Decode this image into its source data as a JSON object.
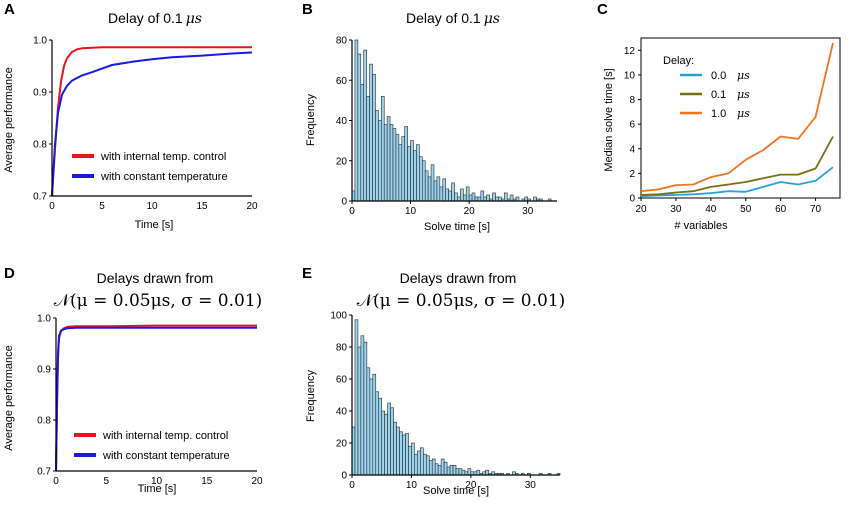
{
  "chart_data": [
    {
      "panel": "A",
      "type": "line",
      "title_prefix": "Delay of ",
      "title_value": "0.1",
      "title_unit": "μs",
      "xlabel": "Time [s]",
      "ylabel": "Average performance",
      "xlim": [
        0,
        20
      ],
      "ylim": [
        0.7,
        1.0
      ],
      "xticks": [
        0,
        5,
        10,
        15,
        20
      ],
      "yticks": [
        0.7,
        0.8,
        0.9,
        1.0
      ],
      "ytick_labels": [
        "0.7",
        "0.8",
        "0.9",
        "1.0"
      ],
      "series": [
        {
          "name": "with internal temp. control",
          "color": "#e8141c",
          "x": [
            0,
            0.3,
            0.6,
            0.9,
            1.2,
            1.5,
            2,
            2.5,
            3,
            4,
            5,
            7,
            10,
            15,
            20
          ],
          "y": [
            0.7,
            0.79,
            0.87,
            0.92,
            0.95,
            0.965,
            0.977,
            0.982,
            0.984,
            0.985,
            0.986,
            0.986,
            0.986,
            0.986,
            0.986
          ]
        },
        {
          "name": "with constant temperature",
          "color": "#1a1ae0",
          "x": [
            0,
            0.3,
            0.6,
            1,
            1.5,
            2,
            3,
            4,
            5,
            6,
            8,
            10,
            12,
            15,
            18,
            20
          ],
          "y": [
            0.7,
            0.8,
            0.86,
            0.895,
            0.912,
            0.922,
            0.932,
            0.938,
            0.945,
            0.952,
            0.958,
            0.963,
            0.967,
            0.97,
            0.974,
            0.976
          ]
        }
      ]
    },
    {
      "panel": "B",
      "type": "bar",
      "title_prefix": "Delay of ",
      "title_value": "0.1",
      "title_unit": "μs",
      "xlabel": "Solve time [s]",
      "ylabel": "Frequency",
      "xlim": [
        0,
        35
      ],
      "ylim": [
        0,
        80
      ],
      "xticks": [
        0,
        10,
        20,
        30
      ],
      "yticks": [
        0,
        20,
        40,
        60,
        80
      ],
      "bin_width": 0.5,
      "values": [
        5,
        80,
        73,
        58,
        75,
        52,
        68,
        63,
        45,
        40,
        52,
        38,
        42,
        38,
        36,
        33,
        28,
        32,
        37,
        27,
        30,
        25,
        28,
        22,
        20,
        15,
        12,
        18,
        10,
        12,
        7,
        11,
        6,
        5,
        9,
        4,
        2,
        6,
        3,
        7,
        3,
        4,
        2,
        2,
        5,
        2,
        3,
        1,
        4,
        2,
        2,
        1,
        4,
        1,
        3,
        1,
        2,
        0,
        1,
        2,
        1,
        0,
        2,
        1,
        1,
        0,
        0,
        1
      ]
    },
    {
      "panel": "C",
      "type": "line",
      "xlabel": "# variables",
      "ylabel": "Median solve time [s]",
      "legend_title": "Delay:",
      "xlim": [
        20,
        77
      ],
      "ylim": [
        0,
        13
      ],
      "xticks": [
        20,
        30,
        40,
        50,
        60,
        70
      ],
      "yticks": [
        0,
        2,
        4,
        6,
        8,
        10,
        12
      ],
      "x": [
        20,
        25,
        30,
        35,
        40,
        45,
        50,
        55,
        60,
        65,
        70,
        75
      ],
      "series": [
        {
          "name": "0.0",
          "unit": "μs",
          "color": "#2a9fdc",
          "values": [
            0.15,
            0.2,
            0.25,
            0.3,
            0.4,
            0.55,
            0.5,
            0.9,
            1.3,
            1.1,
            1.4,
            2.5
          ]
        },
        {
          "name": "0.1",
          "unit": "μs",
          "color": "#7b6d12",
          "values": [
            0.25,
            0.3,
            0.45,
            0.55,
            0.9,
            1.1,
            1.3,
            1.6,
            1.9,
            1.9,
            2.4,
            5.0
          ]
        },
        {
          "name": "1.0",
          "unit": "μs",
          "color": "#f07424",
          "values": [
            0.55,
            0.7,
            1.05,
            1.1,
            1.7,
            2.0,
            3.1,
            3.9,
            5.0,
            4.8,
            6.6,
            12.6
          ]
        }
      ]
    },
    {
      "panel": "D",
      "type": "line",
      "title_line1": "Delays drawn from",
      "title_line2": "𝒩(μ = 0.05μs, σ = 0.01)",
      "xlabel": "Time [s]",
      "ylabel": "Average performance",
      "xlim": [
        0,
        20
      ],
      "ylim": [
        0.7,
        1.0
      ],
      "xticks": [
        0,
        5,
        10,
        15,
        20
      ],
      "yticks": [
        0.7,
        0.8,
        0.9,
        1.0
      ],
      "ytick_labels": [
        "0.7",
        "0.8",
        "0.9",
        "1.0"
      ],
      "series": [
        {
          "name": "with internal temp. control",
          "color": "#e8141c",
          "x": [
            0,
            0.1,
            0.2,
            0.3,
            0.5,
            0.8,
            1.2,
            2,
            5,
            10,
            15,
            20
          ],
          "y": [
            0.7,
            0.82,
            0.92,
            0.96,
            0.975,
            0.98,
            0.983,
            0.984,
            0.984,
            0.985,
            0.985,
            0.985
          ]
        },
        {
          "name": "with constant temperature",
          "color": "#1a1ae0",
          "x": [
            0,
            0.1,
            0.2,
            0.3,
            0.5,
            0.8,
            1.2,
            2,
            5,
            10,
            15,
            20
          ],
          "y": [
            0.7,
            0.84,
            0.93,
            0.965,
            0.975,
            0.978,
            0.98,
            0.981,
            0.981,
            0.981,
            0.981,
            0.981
          ]
        }
      ]
    },
    {
      "panel": "E",
      "type": "bar",
      "title_line1": "Delays drawn from",
      "title_line2": "𝒩(μ = 0.05μs, σ = 0.01)",
      "xlabel": "Solve time [s]",
      "ylabel": "Frequency",
      "xlim": [
        0,
        35
      ],
      "ylim": [
        0,
        100
      ],
      "xticks": [
        0,
        10,
        20,
        30
      ],
      "yticks": [
        0,
        20,
        40,
        60,
        80,
        100
      ],
      "bin_width": 0.5,
      "values": [
        30,
        97,
        80,
        87,
        83,
        67,
        60,
        63,
        52,
        48,
        40,
        38,
        45,
        42,
        33,
        30,
        27,
        25,
        26,
        18,
        20,
        13,
        15,
        17,
        13,
        12,
        9,
        10,
        7,
        6,
        10,
        8,
        5,
        6,
        6,
        4,
        4,
        3,
        2,
        4,
        2,
        2,
        3,
        1,
        2,
        3,
        1,
        2,
        1,
        1,
        1,
        0,
        1,
        0,
        2,
        1,
        0,
        1,
        0,
        1,
        0,
        0,
        0,
        1,
        0,
        0,
        1,
        0,
        0,
        1
      ]
    }
  ],
  "labels": {
    "panel_a": "A",
    "panel_b": "B",
    "panel_c": "C",
    "panel_d": "D",
    "panel_e": "E",
    "x_tick_label_0": "0",
    "x_tick_label_5": "5",
    "x_tick_label_10": "10",
    "x_tick_label_15": "15",
    "x_tick_label_20": "20"
  }
}
